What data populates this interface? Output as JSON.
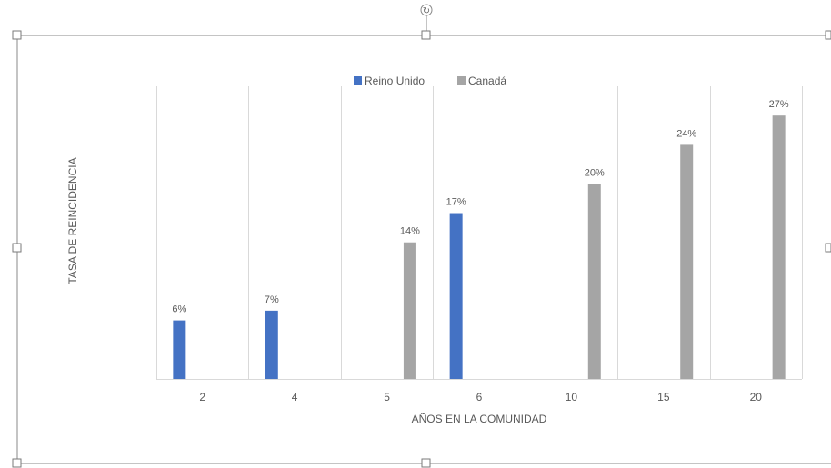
{
  "chart_data": {
    "type": "bar",
    "title": "",
    "xlabel": "AÑOS EN LA COMUNIDAD",
    "ylabel": "TASA DE REINCIDENCIA",
    "categories": [
      "2",
      "4",
      "5",
      "6",
      "10",
      "15",
      "20"
    ],
    "series": [
      {
        "name": "Reino Unido",
        "color": "#4472c4",
        "values": [
          6,
          7,
          null,
          17,
          null,
          null,
          null
        ],
        "labels": [
          "6%",
          "7%",
          "",
          "17%",
          "",
          "",
          ""
        ]
      },
      {
        "name": "Canadá",
        "color": "#a5a5a5",
        "values": [
          null,
          null,
          14,
          null,
          20,
          24,
          27
        ],
        "labels": [
          "",
          "",
          "14%",
          "",
          "20%",
          "24%",
          "27%"
        ]
      }
    ],
    "ylim": [
      0,
      30
    ],
    "value_unit": "%",
    "grid": "vertical",
    "legend_position": "top"
  },
  "selection": {
    "rotate_handle_glyph": "↻"
  }
}
